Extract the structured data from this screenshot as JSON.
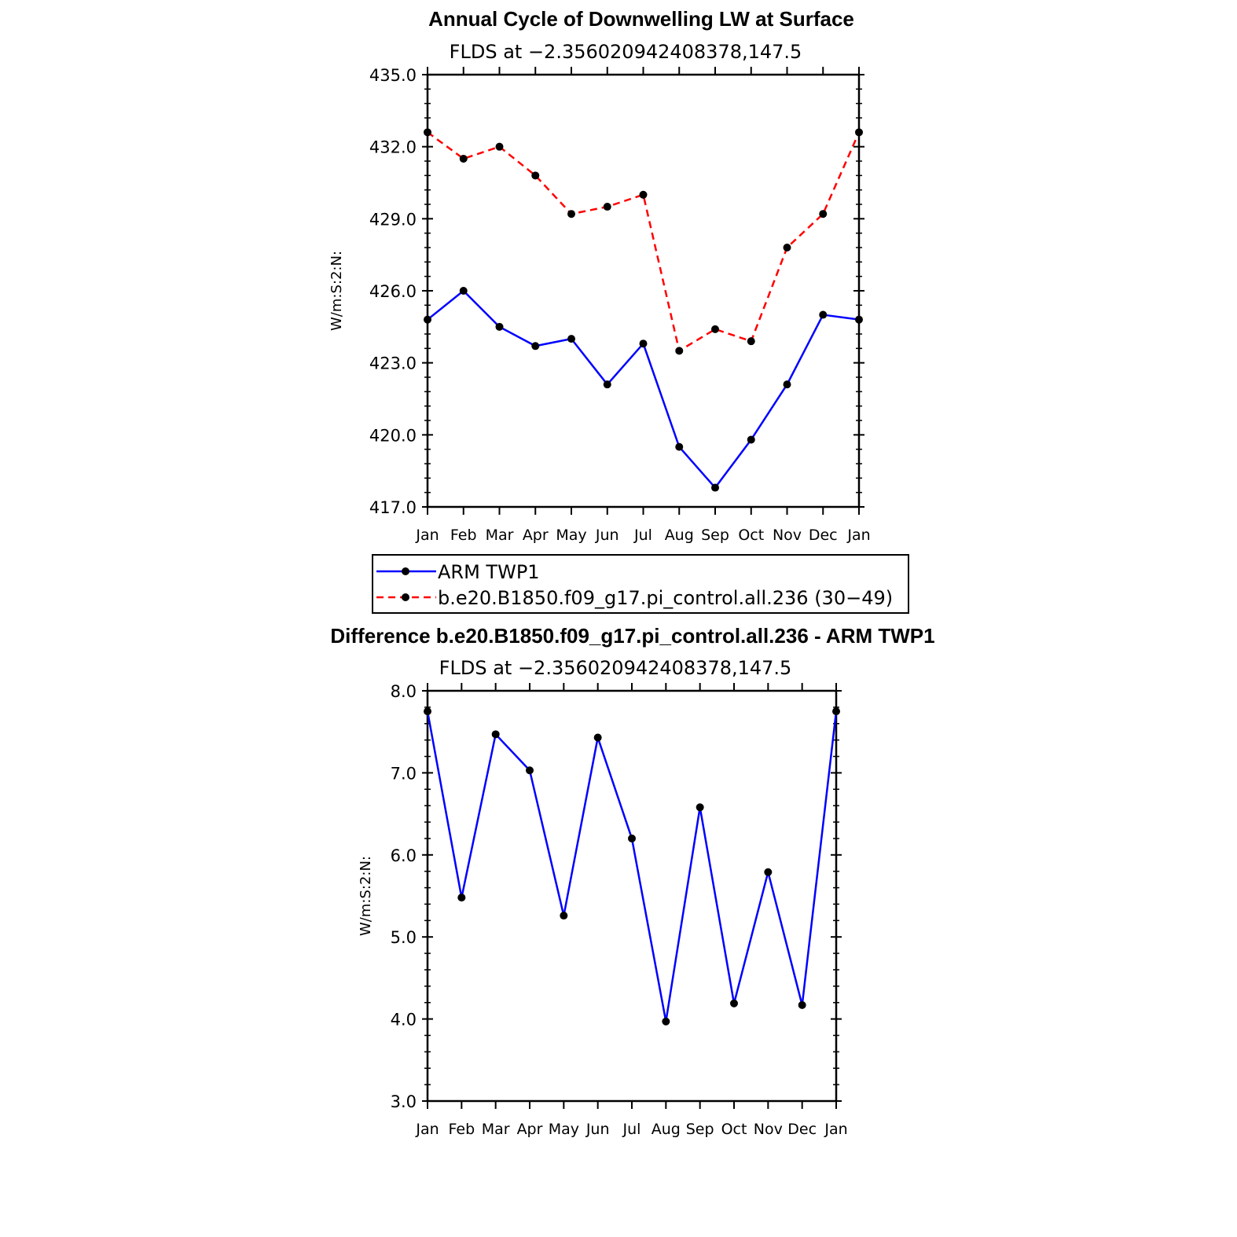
{
  "chart_data": [
    {
      "type": "line",
      "title": "Annual Cycle of Downwelling LW at Surface",
      "subtitle": "FLDS at −2.356020942408378,147.5",
      "ylabel": "W/m:S:2:N:",
      "ylim": [
        417.0,
        435.0
      ],
      "ytick_labels": [
        "417.0",
        "420.0",
        "423.0",
        "426.0",
        "429.0",
        "432.0",
        "435.0"
      ],
      "categories": [
        "Jan",
        "Feb",
        "Mar",
        "Apr",
        "May",
        "Jun",
        "Jul",
        "Aug",
        "Sep",
        "Oct",
        "Nov",
        "Dec",
        "Jan"
      ],
      "series": [
        {
          "name": "ARM TWP1",
          "color": "#0000ff",
          "dash": "solid",
          "values": [
            424.8,
            426.0,
            424.5,
            423.7,
            424.0,
            422.1,
            423.8,
            419.5,
            417.8,
            419.8,
            422.1,
            425.0,
            424.8
          ]
        },
        {
          "name": "b.e20.B1850.f09_g17.pi_control.all.236 (30−49)",
          "color": "#ff0000",
          "dash": "dashed",
          "values": [
            432.6,
            431.5,
            432.0,
            430.8,
            429.2,
            429.5,
            430.0,
            423.5,
            424.4,
            423.9,
            427.8,
            429.2,
            432.6
          ]
        }
      ],
      "grid": false,
      "legend": "below"
    },
    {
      "type": "line",
      "title": "Difference b.e20.B1850.f09_g17.pi_control.all.236 - ARM TWP1",
      "subtitle": "FLDS at −2.356020942408378,147.5",
      "ylabel": "W/m:S:2:N:",
      "ylim": [
        3.0,
        8.0
      ],
      "ytick_labels": [
        "3.0",
        "4.0",
        "5.0",
        "6.0",
        "7.0",
        "8.0"
      ],
      "categories": [
        "Jan",
        "Feb",
        "Mar",
        "Apr",
        "May",
        "Jun",
        "Jul",
        "Aug",
        "Sep",
        "Oct",
        "Nov",
        "Dec",
        "Jan"
      ],
      "series": [
        {
          "color": "#0000ff",
          "dash": "solid",
          "values": [
            7.75,
            5.48,
            7.47,
            7.03,
            5.26,
            7.43,
            6.2,
            3.97,
            6.58,
            4.19,
            5.79,
            4.17,
            7.75
          ]
        }
      ],
      "grid": false
    }
  ]
}
